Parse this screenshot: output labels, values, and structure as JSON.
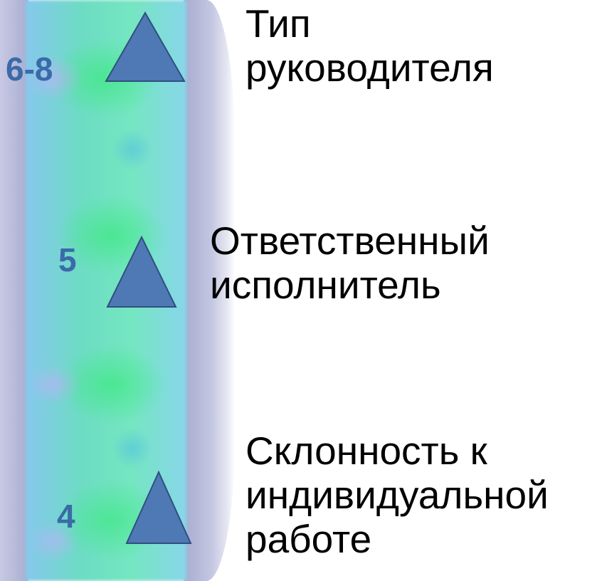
{
  "levels": [
    {
      "number": "6-8",
      "lines": [
        "Тип",
        "руководителя"
      ]
    },
    {
      "number": "5",
      "lines": [
        "Ответственный",
        "исполнитель"
      ]
    },
    {
      "number": "4",
      "lines": [
        "Склонность к",
        "индивидуальной",
        "работе"
      ]
    }
  ],
  "colors": {
    "number_text": "#3b6aa8",
    "triangle_fill": "#4f79b4",
    "triangle_stroke": "#2f4f80",
    "label_text": "#000000"
  },
  "icons": {
    "marker": "triangle-up-icon"
  }
}
